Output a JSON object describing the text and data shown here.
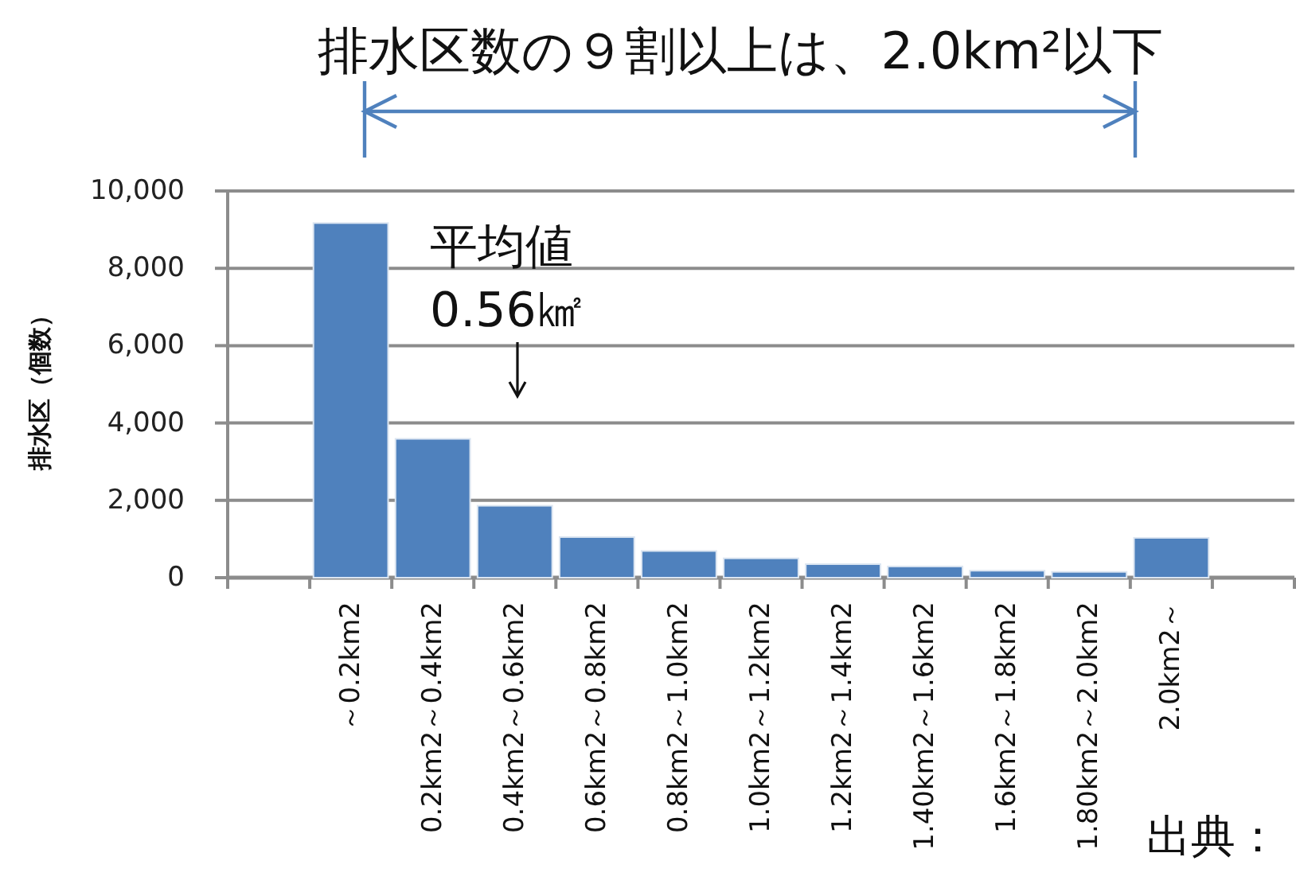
{
  "chart_data": {
    "type": "bar",
    "title": "排水区数の９割以上は、2.0km²以下",
    "ylabel": "排水区（個数）",
    "categories": [
      null,
      "～0.2km2",
      "0.2km2～0.4km2",
      "0.4km2～0.6km2",
      "0.6km2～0.8km2",
      "0.8km2～1.0km2",
      "1.0km2～1.2km2",
      "1.2km2～1.4km2",
      "1.40km2～1.6km2",
      "1.6km2～1.8km2",
      "1.80km2～2.0km2",
      "2.0km2～",
      null
    ],
    "values": [
      null,
      9170,
      3590,
      1860,
      1050,
      690,
      500,
      350,
      290,
      180,
      150,
      1030,
      null
    ],
    "color": "#4f81bd",
    "ylim": [
      0,
      10000
    ],
    "yticks": [
      0,
      {
        "value": 2000,
        "label": "2,000"
      },
      {
        "value": 4000,
        "label": "4,000"
      },
      {
        "value": 6000,
        "label": "6,000"
      },
      {
        "value": 8000,
        "label": "8,000"
      },
      {
        "value": 10000,
        "label": "10,000"
      }
    ],
    "grid": "y",
    "annotations": [
      "平均値\n0.56㎢",
      "出典："
    ]
  }
}
